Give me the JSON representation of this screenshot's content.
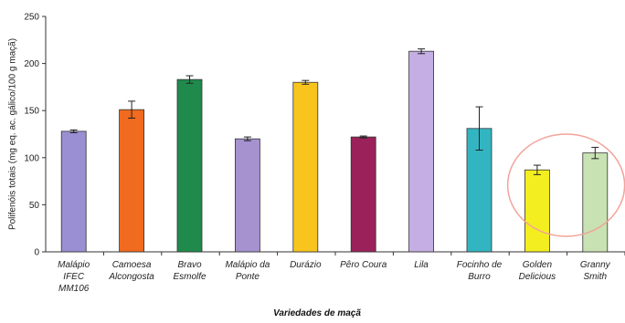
{
  "chart_data": {
    "type": "bar",
    "title": "",
    "xlabel": "Variedades de maçã",
    "ylabel": "Polifenóis totais (mg eq. ac. gálico/100 g maçã)",
    "ylim": [
      0,
      250
    ],
    "yticks": [
      "0",
      "50",
      "100",
      "150",
      "200",
      "250"
    ],
    "grid": false,
    "categories": [
      [
        "Malápio",
        "IFEC",
        "MM106"
      ],
      [
        "Camoesa",
        "Alcongosta"
      ],
      [
        "Bravo",
        "Esmolfe"
      ],
      [
        "Malápio da",
        "Ponte"
      ],
      [
        "Durázio"
      ],
      [
        "Pêro Coura"
      ],
      [
        "Lila"
      ],
      [
        "Focinho de",
        "Burro"
      ],
      [
        "Golden",
        "Delicious"
      ],
      [
        "Granny",
        "Smith"
      ]
    ],
    "values": [
      128,
      151,
      183,
      120,
      180,
      122,
      213,
      131,
      87,
      105
    ],
    "errors": [
      1.5,
      9,
      4,
      2,
      2,
      1,
      2.5,
      23,
      5,
      6
    ],
    "colors": [
      "#9a8fd2",
      "#f06a1f",
      "#1f8a4c",
      "#a592cf",
      "#f7c51d",
      "#9a2159",
      "#c4aee3",
      "#33b5c1",
      "#f3ee1f",
      "#c8e2b3"
    ],
    "highlight": {
      "categories": [
        "Golden Delicious",
        "Granny Smith"
      ],
      "color": "#f3a39a"
    }
  }
}
